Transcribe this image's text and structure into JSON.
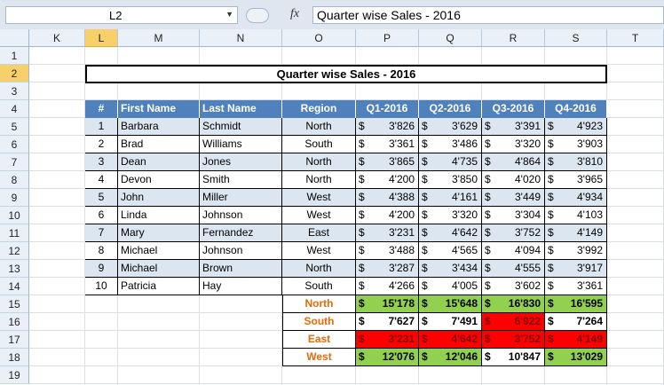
{
  "formula_bar": {
    "name_box": "L2",
    "fx_label": "fx",
    "formula": "Quarter wise Sales - 2016"
  },
  "columns": [
    "K",
    "L",
    "M",
    "N",
    "O",
    "P",
    "Q",
    "R",
    "S",
    "T"
  ],
  "rows": [
    "1",
    "2",
    "3",
    "4",
    "5",
    "6",
    "7",
    "8",
    "9",
    "10",
    "11",
    "12",
    "13",
    "14",
    "15",
    "16",
    "17",
    "18",
    "19"
  ],
  "sheet": {
    "title": "Quarter wise Sales - 2016",
    "headers": [
      "#",
      "First Name",
      "Last Name",
      "Region",
      "Q1-2016",
      "Q2-2016",
      "Q3-2016",
      "Q4-2016"
    ],
    "currency": "$",
    "records": [
      {
        "num": "1",
        "first": "Barbara",
        "last": "Schmidt",
        "region": "North",
        "q1": "3'826",
        "q2": "3'629",
        "q3": "3'391",
        "q4": "4'923"
      },
      {
        "num": "2",
        "first": "Brad",
        "last": "Williams",
        "region": "South",
        "q1": "3'361",
        "q2": "3'486",
        "q3": "3'320",
        "q4": "3'903"
      },
      {
        "num": "3",
        "first": "Dean",
        "last": "Jones",
        "region": "North",
        "q1": "3'865",
        "q2": "4'735",
        "q3": "4'864",
        "q4": "3'810"
      },
      {
        "num": "4",
        "first": "Devon",
        "last": "Smith",
        "region": "North",
        "q1": "4'200",
        "q2": "3'850",
        "q3": "4'020",
        "q4": "3'965"
      },
      {
        "num": "5",
        "first": "John",
        "last": "Miller",
        "region": "West",
        "q1": "4'388",
        "q2": "4'161",
        "q3": "3'449",
        "q4": "4'934"
      },
      {
        "num": "6",
        "first": "Linda",
        "last": "Johnson",
        "region": "West",
        "q1": "4'200",
        "q2": "3'320",
        "q3": "3'304",
        "q4": "4'103"
      },
      {
        "num": "7",
        "first": "Mary",
        "last": "Fernandez",
        "region": "East",
        "q1": "3'231",
        "q2": "4'642",
        "q3": "3'752",
        "q4": "4'149"
      },
      {
        "num": "8",
        "first": "Michael",
        "last": "Johnson",
        "region": "West",
        "q1": "3'488",
        "q2": "4'565",
        "q3": "4'094",
        "q4": "3'992"
      },
      {
        "num": "9",
        "first": "Michael",
        "last": "Brown",
        "region": "North",
        "q1": "3'287",
        "q2": "3'434",
        "q3": "4'555",
        "q4": "3'917"
      },
      {
        "num": "10",
        "first": "Patricia",
        "last": "Hay",
        "region": "South",
        "q1": "4'266",
        "q2": "4'005",
        "q3": "3'602",
        "q4": "3'361"
      }
    ],
    "totals": [
      {
        "region": "North",
        "values": [
          "15'178",
          "15'648",
          "16'830",
          "16'595"
        ],
        "fills": [
          "green",
          "green",
          "green",
          "green"
        ]
      },
      {
        "region": "South",
        "values": [
          "7'627",
          "7'491",
          "6'922",
          "7'264"
        ],
        "fills": [
          "white",
          "white",
          "red",
          "white"
        ]
      },
      {
        "region": "East",
        "values": [
          "3'231",
          "4'642",
          "3'752",
          "4'149"
        ],
        "fills": [
          "red",
          "red",
          "red",
          "red"
        ]
      },
      {
        "region": "West",
        "values": [
          "12'076",
          "12'046",
          "10'847",
          "13'029"
        ],
        "fills": [
          "green",
          "green",
          "white",
          "green"
        ]
      }
    ]
  },
  "colors": {
    "header_fill": "#4f81bd",
    "band_fill": "#dce6f1",
    "region_text": "#e26b0a",
    "green_fill": "#92d050",
    "red_fill": "#ff0000"
  }
}
